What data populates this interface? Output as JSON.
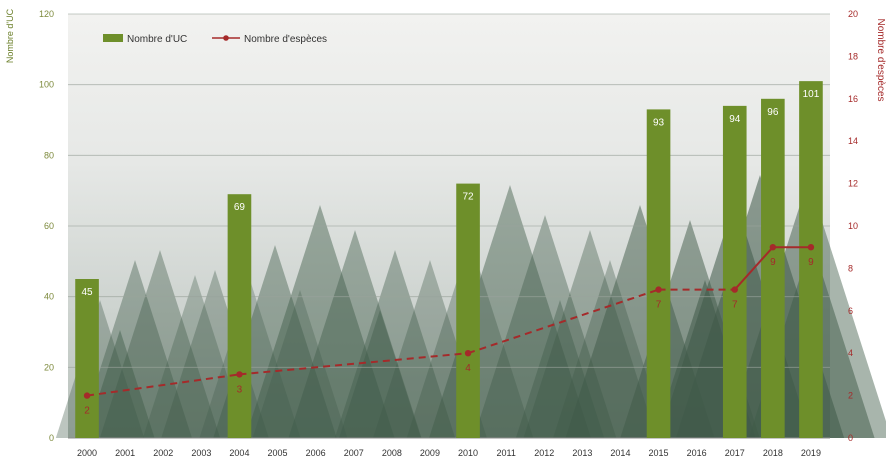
{
  "chart_data": {
    "type": "bar",
    "categories": [
      "2000",
      "2001",
      "2002",
      "2003",
      "2004",
      "2005",
      "2006",
      "2007",
      "2008",
      "2009",
      "2010",
      "2011",
      "2012",
      "2013",
      "2014",
      "2015",
      "2016",
      "2017",
      "2018",
      "2019"
    ],
    "series": [
      {
        "name": "Nombre d'UC",
        "type": "bar",
        "axis": "left",
        "color": "#6e8f2a",
        "values": [
          45,
          null,
          null,
          null,
          69,
          null,
          null,
          null,
          null,
          null,
          72,
          null,
          null,
          null,
          null,
          93,
          null,
          94,
          96,
          101
        ],
        "labels": [
          "45",
          "",
          "",
          "",
          "69",
          "",
          "",
          "",
          "",
          "",
          "72",
          "",
          "",
          "",
          "",
          "93",
          "",
          "94",
          "96",
          "101"
        ]
      },
      {
        "name": "Nombre d'espèces",
        "type": "line",
        "axis": "right",
        "color": "#a52a2a",
        "values": [
          2,
          null,
          null,
          null,
          3,
          null,
          null,
          null,
          null,
          null,
          4,
          null,
          null,
          null,
          null,
          7,
          null,
          7,
          9,
          9
        ],
        "labels": [
          "2",
          "",
          "",
          "",
          "3",
          "",
          "",
          "",
          "",
          "",
          "4",
          "",
          "",
          "",
          "",
          "7",
          "",
          "7",
          "9",
          "9"
        ]
      }
    ],
    "ylabel_left": "Nombre d'UC",
    "ylabel_right": "Nombre d'espèces",
    "ylim_left": [
      0,
      120
    ],
    "ylim_right": [
      0,
      20
    ],
    "yticks_left": [
      "0",
      "20",
      "40",
      "60",
      "80",
      "100",
      "120"
    ],
    "yticks_right": [
      "0",
      "2",
      "4",
      "6",
      "8",
      "10",
      "12",
      "14",
      "16",
      "18",
      "20"
    ],
    "grid": true,
    "legend": "top-left",
    "background": "misty forest photograph",
    "gap_style": "dashed"
  }
}
